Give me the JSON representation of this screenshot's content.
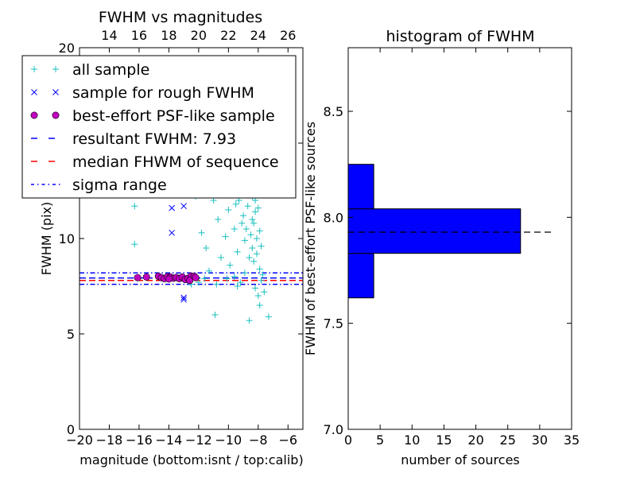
{
  "chart_data": [
    {
      "type": "scatter",
      "title": "FWHM vs magnitudes",
      "xlabel": "magnitude (bottom:isnt / top:calib)",
      "ylabel": "FWHM (pix)",
      "xlim": [
        -20,
        -5
      ],
      "ylim": [
        0,
        20
      ],
      "xticks": [
        "−20",
        "−18",
        "−16",
        "−14",
        "−12",
        "−10",
        "−8",
        "−6"
      ],
      "xtick_values": [
        -20,
        -18,
        -16,
        -14,
        -12,
        -10,
        -8,
        -6
      ],
      "yticks": [
        "0",
        "5",
        "10",
        "15",
        "20"
      ],
      "ytick_values": [
        0,
        5,
        10,
        15,
        20
      ],
      "top_axis_ticks": [
        "14",
        "16",
        "18",
        "20",
        "22",
        "24",
        "26"
      ],
      "top_axis_positions": [
        -18,
        -16,
        -14,
        -12,
        -10,
        -8,
        -6
      ],
      "legend_position": "upper-left",
      "series": [
        {
          "name": "all sample",
          "marker": "+",
          "color": "#1abfbf",
          "points": [
            [
              -16.3,
              11.7
            ],
            [
              -16.3,
              9.7
            ],
            [
              -14.9,
              12.3
            ],
            [
              -13.5,
              8.0
            ],
            [
              -13.0,
              7.9
            ],
            [
              -12.2,
              12.2
            ],
            [
              -11.8,
              10.3
            ],
            [
              -11.5,
              9.5
            ],
            [
              -11.3,
              8.3
            ],
            [
              -11.0,
              12.0
            ],
            [
              -10.9,
              6.0
            ],
            [
              -10.7,
              11.0
            ],
            [
              -10.5,
              9.0
            ],
            [
              -10.4,
              12.5
            ],
            [
              -10.2,
              10.1
            ],
            [
              -10.0,
              11.5
            ],
            [
              -9.9,
              8.6
            ],
            [
              -9.8,
              12.8
            ],
            [
              -9.7,
              13.2
            ],
            [
              -9.6,
              10.5
            ],
            [
              -9.5,
              11.8
            ],
            [
              -9.4,
              9.3
            ],
            [
              -9.3,
              12.0
            ],
            [
              -9.2,
              14.0
            ],
            [
              -9.1,
              10.8
            ],
            [
              -9.0,
              11.2
            ],
            [
              -9.0,
              13.6
            ],
            [
              -8.9,
              9.9
            ],
            [
              -8.9,
              12.4
            ],
            [
              -8.8,
              18.8
            ],
            [
              -8.8,
              10.5
            ],
            [
              -8.7,
              11.7
            ],
            [
              -8.7,
              13.0
            ],
            [
              -8.6,
              9.0
            ],
            [
              -8.6,
              12.7
            ],
            [
              -8.5,
              10.2
            ],
            [
              -8.5,
              14.3
            ],
            [
              -8.4,
              11.0
            ],
            [
              -8.4,
              12.2
            ],
            [
              -8.4,
              9.5
            ],
            [
              -8.3,
              13.5
            ],
            [
              -8.3,
              10.8
            ],
            [
              -8.3,
              8.8
            ],
            [
              -8.2,
              12.0
            ],
            [
              -8.2,
              11.4
            ],
            [
              -8.2,
              7.4
            ],
            [
              -8.1,
              13.8
            ],
            [
              -8.1,
              10.0
            ],
            [
              -8.1,
              9.2
            ],
            [
              -8.0,
              12.9
            ],
            [
              -8.0,
              11.6
            ],
            [
              -8.0,
              7.0
            ],
            [
              -7.9,
              10.4
            ],
            [
              -7.9,
              8.4
            ],
            [
              -7.9,
              6.5
            ],
            [
              -7.8,
              9.6
            ],
            [
              -7.8,
              7.8
            ],
            [
              -7.7,
              8.1
            ],
            [
              -7.6,
              7.2
            ],
            [
              -8.6,
              5.7
            ],
            [
              -7.3,
              5.9
            ],
            [
              -10.1,
              7.9
            ],
            [
              -9.6,
              8.0
            ],
            [
              -9.2,
              7.7
            ],
            [
              -8.9,
              8.2
            ],
            [
              -10.8,
              7.6
            ],
            [
              -11.6,
              7.9
            ],
            [
              -12.5,
              7.6
            ],
            [
              -12.0,
              7.7
            ],
            [
              -9.4,
              7.5
            ]
          ]
        },
        {
          "name": "sample for rough FWHM",
          "marker": "x",
          "color": "#0000ff",
          "points": [
            [
              -13.8,
              11.6
            ],
            [
              -13.0,
              11.7
            ],
            [
              -13.8,
              10.3
            ],
            [
              -13.0,
              6.9
            ],
            [
              -13.0,
              6.8
            ]
          ]
        },
        {
          "name": "best-effort PSF-like sample",
          "marker": "o",
          "color": "#bf00bf",
          "points": [
            [
              -16.1,
              7.95
            ],
            [
              -15.5,
              7.98
            ],
            [
              -14.7,
              8.02
            ],
            [
              -14.5,
              7.95
            ],
            [
              -14.3,
              7.9
            ],
            [
              -14.1,
              8.0
            ],
            [
              -13.9,
              7.98
            ],
            [
              -13.7,
              7.92
            ],
            [
              -13.5,
              7.96
            ],
            [
              -13.3,
              7.9
            ],
            [
              -13.1,
              7.98
            ],
            [
              -12.9,
              7.85
            ],
            [
              -12.7,
              7.92
            ],
            [
              -12.5,
              8.03
            ],
            [
              -12.3,
              8.02
            ],
            [
              -12.6,
              7.8
            ],
            [
              -14.0,
              7.88
            ],
            [
              -12.2,
              7.95
            ]
          ]
        }
      ],
      "hlines": [
        {
          "name": "resultant FWHM: 7.93",
          "y": 7.93,
          "color": "#0000ff",
          "style": "dashed"
        },
        {
          "name": "median FHWM of sequence",
          "y": 7.8,
          "color": "#ff0000",
          "style": "dashed"
        },
        {
          "name": "sigma range",
          "y": [
            7.6,
            8.2
          ],
          "color": "#0000ff",
          "style": "dashdot"
        }
      ]
    },
    {
      "type": "bar",
      "orientation": "horizontal",
      "title": "histogram of FWHM",
      "xlabel": "number of sources",
      "ylabel": "FWHM of best-effort PSF-like sources",
      "xlim": [
        0,
        35
      ],
      "ylim": [
        7.0,
        8.8
      ],
      "xticks": [
        "0",
        "5",
        "10",
        "15",
        "20",
        "25",
        "30",
        "35"
      ],
      "xtick_values": [
        0,
        5,
        10,
        15,
        20,
        25,
        30,
        35
      ],
      "yticks": [
        "7.0",
        "7.5",
        "8.0",
        "8.5"
      ],
      "ytick_values": [
        7.0,
        7.5,
        8.0,
        8.5
      ],
      "bar_color": "#0000ff",
      "bins": [
        {
          "low": 7.62,
          "high": 7.83,
          "count": 4
        },
        {
          "low": 7.83,
          "high": 8.04,
          "count": 27
        },
        {
          "low": 8.04,
          "high": 8.25,
          "count": 4
        }
      ],
      "reference_line": {
        "y": 7.93,
        "xrange": [
          0,
          32
        ],
        "style": "dashed",
        "color": "#000000"
      }
    }
  ]
}
